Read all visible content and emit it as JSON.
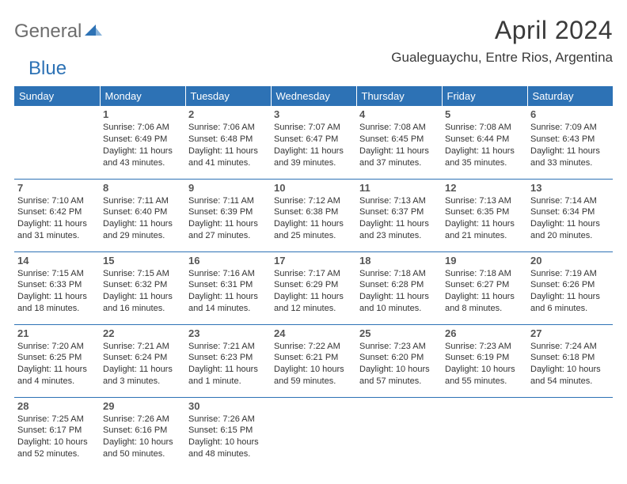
{
  "logo": {
    "gray": "General",
    "blue": "Blue"
  },
  "title": "April 2024",
  "location": "Gualeguaychu, Entre Rios, Argentina",
  "colors": {
    "header_bg": "#2d72b5",
    "header_text": "#ffffff",
    "border": "#2d72b5",
    "daynum": "#555555",
    "body_text": "#333333",
    "logo_gray": "#6d6d6d",
    "logo_blue": "#2d72b5"
  },
  "day_headers": [
    "Sunday",
    "Monday",
    "Tuesday",
    "Wednesday",
    "Thursday",
    "Friday",
    "Saturday"
  ],
  "weeks": [
    [
      null,
      {
        "n": "1",
        "sr": "7:06 AM",
        "ss": "6:49 PM",
        "dl": "11 hours and 43 minutes."
      },
      {
        "n": "2",
        "sr": "7:06 AM",
        "ss": "6:48 PM",
        "dl": "11 hours and 41 minutes."
      },
      {
        "n": "3",
        "sr": "7:07 AM",
        "ss": "6:47 PM",
        "dl": "11 hours and 39 minutes."
      },
      {
        "n": "4",
        "sr": "7:08 AM",
        "ss": "6:45 PM",
        "dl": "11 hours and 37 minutes."
      },
      {
        "n": "5",
        "sr": "7:08 AM",
        "ss": "6:44 PM",
        "dl": "11 hours and 35 minutes."
      },
      {
        "n": "6",
        "sr": "7:09 AM",
        "ss": "6:43 PM",
        "dl": "11 hours and 33 minutes."
      }
    ],
    [
      {
        "n": "7",
        "sr": "7:10 AM",
        "ss": "6:42 PM",
        "dl": "11 hours and 31 minutes."
      },
      {
        "n": "8",
        "sr": "7:11 AM",
        "ss": "6:40 PM",
        "dl": "11 hours and 29 minutes."
      },
      {
        "n": "9",
        "sr": "7:11 AM",
        "ss": "6:39 PM",
        "dl": "11 hours and 27 minutes."
      },
      {
        "n": "10",
        "sr": "7:12 AM",
        "ss": "6:38 PM",
        "dl": "11 hours and 25 minutes."
      },
      {
        "n": "11",
        "sr": "7:13 AM",
        "ss": "6:37 PM",
        "dl": "11 hours and 23 minutes."
      },
      {
        "n": "12",
        "sr": "7:13 AM",
        "ss": "6:35 PM",
        "dl": "11 hours and 21 minutes."
      },
      {
        "n": "13",
        "sr": "7:14 AM",
        "ss": "6:34 PM",
        "dl": "11 hours and 20 minutes."
      }
    ],
    [
      {
        "n": "14",
        "sr": "7:15 AM",
        "ss": "6:33 PM",
        "dl": "11 hours and 18 minutes."
      },
      {
        "n": "15",
        "sr": "7:15 AM",
        "ss": "6:32 PM",
        "dl": "11 hours and 16 minutes."
      },
      {
        "n": "16",
        "sr": "7:16 AM",
        "ss": "6:31 PM",
        "dl": "11 hours and 14 minutes."
      },
      {
        "n": "17",
        "sr": "7:17 AM",
        "ss": "6:29 PM",
        "dl": "11 hours and 12 minutes."
      },
      {
        "n": "18",
        "sr": "7:18 AM",
        "ss": "6:28 PM",
        "dl": "11 hours and 10 minutes."
      },
      {
        "n": "19",
        "sr": "7:18 AM",
        "ss": "6:27 PM",
        "dl": "11 hours and 8 minutes."
      },
      {
        "n": "20",
        "sr": "7:19 AM",
        "ss": "6:26 PM",
        "dl": "11 hours and 6 minutes."
      }
    ],
    [
      {
        "n": "21",
        "sr": "7:20 AM",
        "ss": "6:25 PM",
        "dl": "11 hours and 4 minutes."
      },
      {
        "n": "22",
        "sr": "7:21 AM",
        "ss": "6:24 PM",
        "dl": "11 hours and 3 minutes."
      },
      {
        "n": "23",
        "sr": "7:21 AM",
        "ss": "6:23 PM",
        "dl": "11 hours and 1 minute."
      },
      {
        "n": "24",
        "sr": "7:22 AM",
        "ss": "6:21 PM",
        "dl": "10 hours and 59 minutes."
      },
      {
        "n": "25",
        "sr": "7:23 AM",
        "ss": "6:20 PM",
        "dl": "10 hours and 57 minutes."
      },
      {
        "n": "26",
        "sr": "7:23 AM",
        "ss": "6:19 PM",
        "dl": "10 hours and 55 minutes."
      },
      {
        "n": "27",
        "sr": "7:24 AM",
        "ss": "6:18 PM",
        "dl": "10 hours and 54 minutes."
      }
    ],
    [
      {
        "n": "28",
        "sr": "7:25 AM",
        "ss": "6:17 PM",
        "dl": "10 hours and 52 minutes."
      },
      {
        "n": "29",
        "sr": "7:26 AM",
        "ss": "6:16 PM",
        "dl": "10 hours and 50 minutes."
      },
      {
        "n": "30",
        "sr": "7:26 AM",
        "ss": "6:15 PM",
        "dl": "10 hours and 48 minutes."
      },
      null,
      null,
      null,
      null
    ]
  ],
  "labels": {
    "sunrise": "Sunrise:",
    "sunset": "Sunset:",
    "daylight": "Daylight:"
  }
}
